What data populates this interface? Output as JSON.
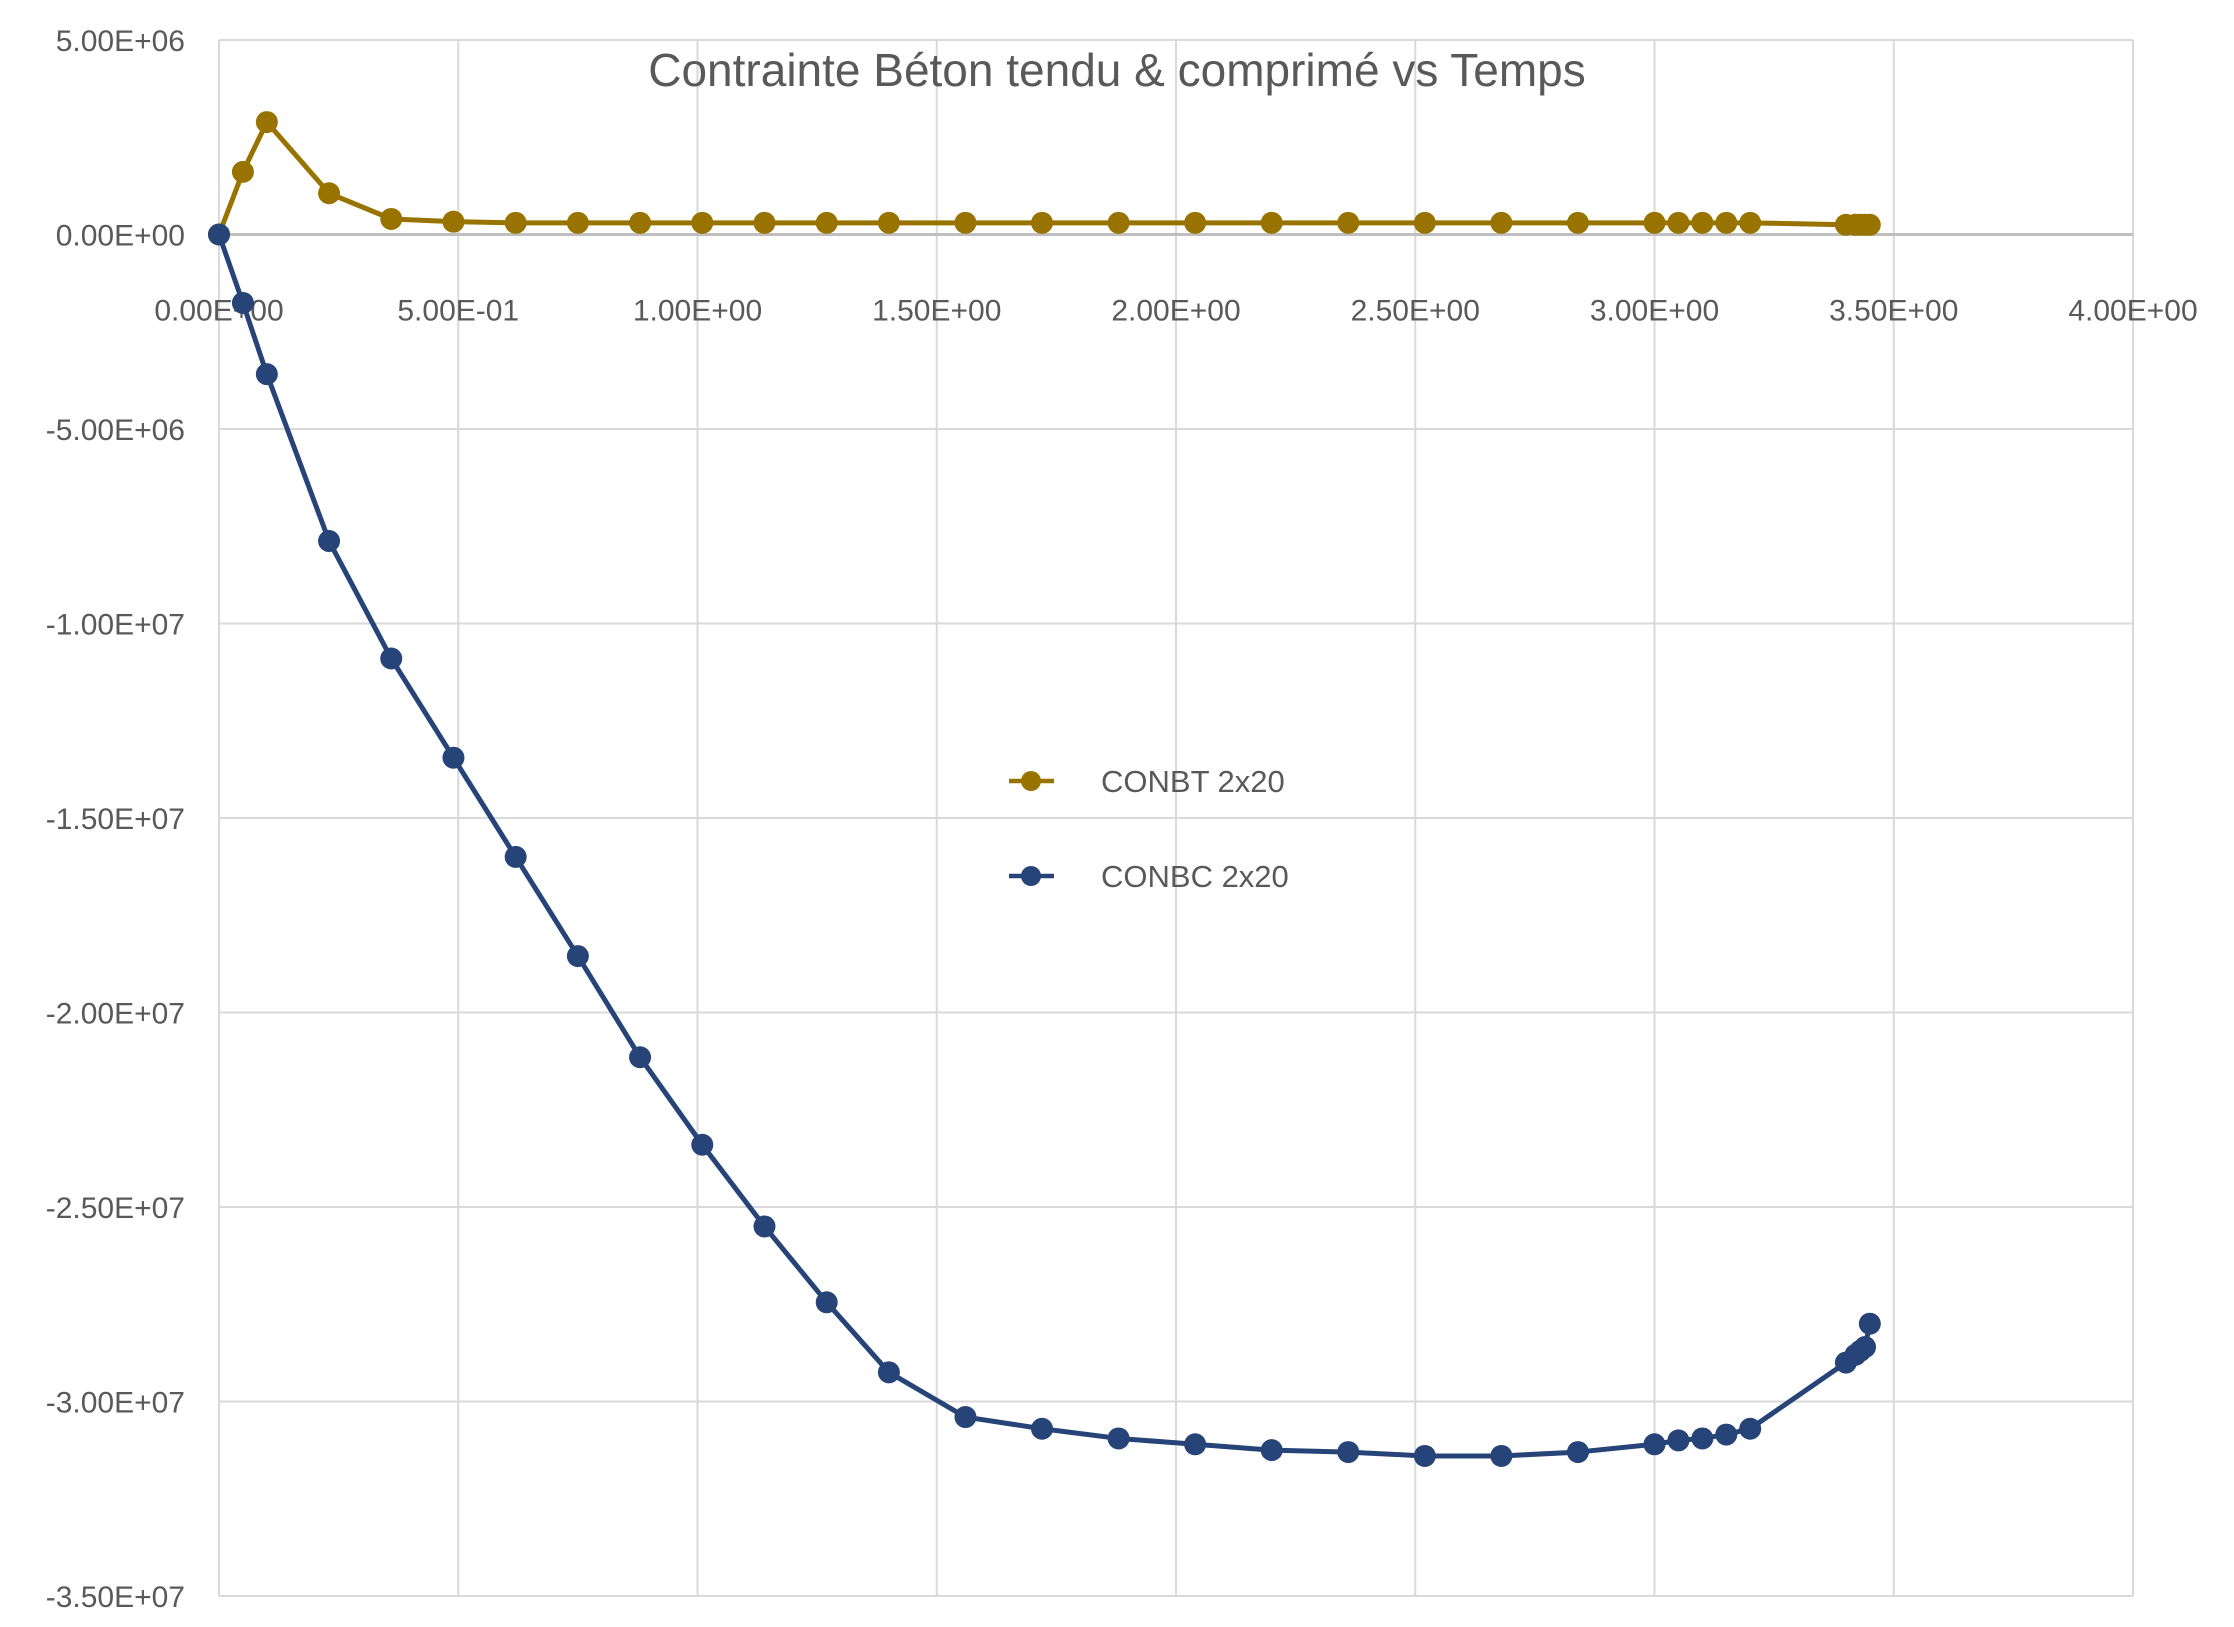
{
  "chart_data": {
    "type": "scatter",
    "title": "Contrainte Béton tendu & comprimé vs Temps",
    "xlabel": "",
    "ylabel": "",
    "xlim": [
      0,
      4.0
    ],
    "ylim": [
      -35000000,
      5000000
    ],
    "x_ticks": [
      0,
      0.5,
      1.0,
      1.5,
      2.0,
      2.5,
      3.0,
      3.5,
      4.0
    ],
    "x_tick_labels": [
      "0.00E+00",
      "5.00E-01",
      "1.00E+00",
      "1.50E+00",
      "2.00E+00",
      "2.50E+00",
      "3.00E+00",
      "3.50E+00",
      "4.00E+00"
    ],
    "y_ticks": [
      5000000,
      0,
      -5000000,
      -10000000,
      -15000000,
      -20000000,
      -25000000,
      -30000000,
      -35000000
    ],
    "y_tick_labels": [
      "5.00E+06",
      "0.00E+00",
      "-5.00E+06",
      "-1.00E+07",
      "-1.50E+07",
      "-2.00E+07",
      "-2.50E+07",
      "-3.00E+07",
      "-3.50E+07"
    ],
    "grid": true,
    "legend_position": "center",
    "colors": {
      "CONBT": "#997300",
      "CONBC": "#264478",
      "grid": "#d9d9d9",
      "text": "#595959"
    },
    "series": [
      {
        "name": "CONBT 2x20",
        "color": "#997300",
        "x": [
          0,
          0.05,
          0.1,
          0.23,
          0.36,
          0.49,
          0.62,
          0.75,
          0.88,
          1.01,
          1.14,
          1.27,
          1.4,
          1.56,
          1.72,
          1.88,
          2.04,
          2.2,
          2.36,
          2.52,
          2.68,
          2.84,
          3.0,
          3.05,
          3.1,
          3.15,
          3.2,
          3.4,
          3.42,
          3.43,
          3.44,
          3.45
        ],
        "y": [
          0,
          1610000,
          2890000,
          1060000,
          400000,
          330000,
          300000,
          300000,
          300000,
          300000,
          300000,
          300000,
          300000,
          300000,
          300000,
          300000,
          300000,
          300000,
          300000,
          300000,
          300000,
          300000,
          300000,
          300000,
          300000,
          300000,
          300000,
          250000,
          250000,
          250000,
          250000,
          250000
        ]
      },
      {
        "name": "CONBC 2x20",
        "color": "#264478",
        "x": [
          0,
          0.05,
          0.1,
          0.23,
          0.36,
          0.49,
          0.62,
          0.75,
          0.88,
          1.01,
          1.14,
          1.27,
          1.4,
          1.56,
          1.72,
          1.88,
          2.04,
          2.2,
          2.36,
          2.52,
          2.68,
          2.84,
          3.0,
          3.05,
          3.1,
          3.15,
          3.2,
          3.4,
          3.42,
          3.43,
          3.44,
          3.45
        ],
        "y": [
          0,
          -1760000,
          -3590000,
          -7880000,
          -10900000,
          -13450000,
          -16000000,
          -18550000,
          -21150000,
          -23400000,
          -25500000,
          -27450000,
          -29250000,
          -30400000,
          -30700000,
          -30950000,
          -31100000,
          -31250000,
          -31300000,
          -31400000,
          -31400000,
          -31300000,
          -31100000,
          -31000000,
          -30950000,
          -30850000,
          -30700000,
          -29000000,
          -28800000,
          -28700000,
          -28600000,
          -28000000
        ]
      }
    ]
  }
}
